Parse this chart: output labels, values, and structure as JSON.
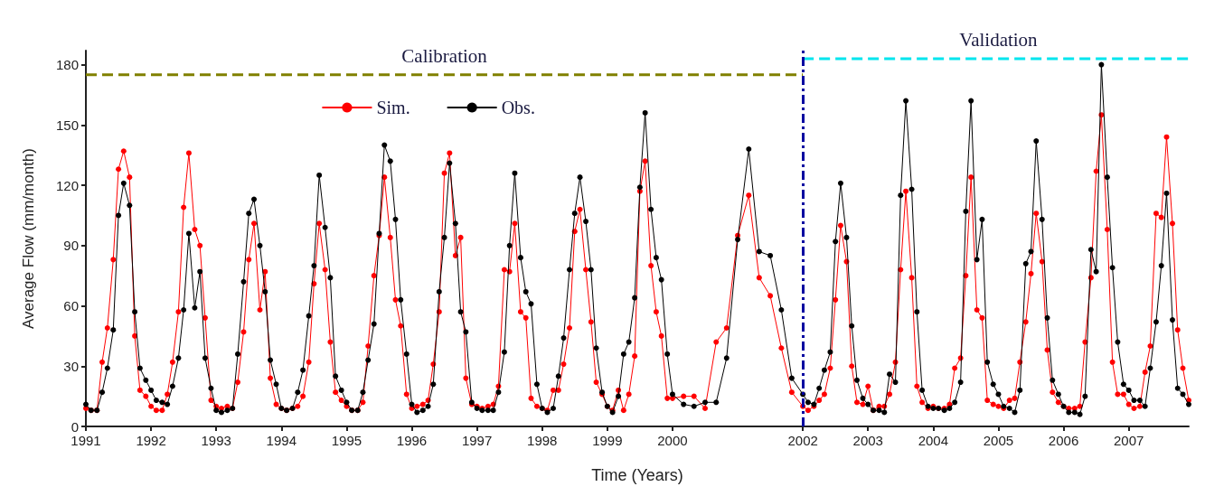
{
  "chart_data": {
    "type": "line",
    "xlabel": "Time (Years)",
    "ylabel": "Average Flow (mm/month)",
    "x": [
      1991,
      1991.08,
      1991.17,
      1991.25,
      1991.33,
      1991.42,
      1991.5,
      1991.58,
      1991.67,
      1991.75,
      1991.83,
      1991.92,
      1992,
      1992.08,
      1992.17,
      1992.25,
      1992.33,
      1992.42,
      1992.5,
      1992.58,
      1992.67,
      1992.75,
      1992.83,
      1992.92,
      1993,
      1993.08,
      1993.17,
      1993.25,
      1993.33,
      1993.42,
      1993.5,
      1993.58,
      1993.67,
      1993.75,
      1993.83,
      1993.92,
      1994,
      1994.08,
      1994.17,
      1994.25,
      1994.33,
      1994.42,
      1994.5,
      1994.58,
      1994.67,
      1994.75,
      1994.83,
      1994.92,
      1995,
      1995.08,
      1995.17,
      1995.25,
      1995.33,
      1995.42,
      1995.5,
      1995.58,
      1995.67,
      1995.75,
      1995.83,
      1995.92,
      1996,
      1996.08,
      1996.17,
      1996.25,
      1996.33,
      1996.42,
      1996.5,
      1996.58,
      1996.67,
      1996.75,
      1996.83,
      1996.92,
      1997,
      1997.08,
      1997.17,
      1997.25,
      1997.33,
      1997.42,
      1997.5,
      1997.58,
      1997.67,
      1997.75,
      1997.83,
      1997.92,
      1998,
      1998.08,
      1998.17,
      1998.25,
      1998.33,
      1998.42,
      1998.5,
      1998.58,
      1998.67,
      1998.75,
      1998.83,
      1998.92,
      1999,
      1999.08,
      1999.17,
      1999.25,
      1999.33,
      1999.42,
      1999.5,
      1999.58,
      1999.67,
      1999.75,
      1999.83,
      1999.92,
      2000,
      2000.17,
      2000.33,
      2000.5,
      2000.67,
      2000.83,
      2001,
      2001.17,
      2001.33,
      2001.5,
      2001.67,
      2001.83,
      2002,
      2002.08,
      2002.17,
      2002.25,
      2002.33,
      2002.42,
      2002.5,
      2002.58,
      2002.67,
      2002.75,
      2002.83,
      2002.92,
      2003,
      2003.08,
      2003.17,
      2003.25,
      2003.33,
      2003.42,
      2003.5,
      2003.58,
      2003.67,
      2003.75,
      2003.83,
      2003.92,
      2004,
      2004.08,
      2004.17,
      2004.25,
      2004.33,
      2004.42,
      2004.5,
      2004.58,
      2004.67,
      2004.75,
      2004.83,
      2004.92,
      2005,
      2005.08,
      2005.17,
      2005.25,
      2005.33,
      2005.42,
      2005.5,
      2005.58,
      2005.67,
      2005.75,
      2005.83,
      2005.92,
      2006,
      2006.08,
      2006.17,
      2006.25,
      2006.33,
      2006.42,
      2006.5,
      2006.58,
      2006.67,
      2006.75,
      2006.83,
      2006.92,
      2007,
      2007.08,
      2007.17,
      2007.25,
      2007.33,
      2007.42,
      2007.5,
      2007.58,
      2007.67,
      2007.75,
      2007.83,
      2007.92
    ],
    "series": [
      {
        "name": "Sim.",
        "color": "#ff0000",
        "values": [
          9,
          8,
          8,
          32,
          49,
          83,
          128,
          137,
          124,
          45,
          18,
          15,
          10,
          8,
          8,
          16,
          32,
          57,
          109,
          136,
          98,
          90,
          54,
          13,
          10,
          9,
          10,
          9,
          22,
          47,
          83,
          101,
          58,
          77,
          24,
          11,
          9,
          8,
          9,
          10,
          15,
          32,
          71,
          101,
          78,
          42,
          17,
          13,
          10,
          8,
          8,
          12,
          40,
          75,
          95,
          124,
          94,
          63,
          50,
          16,
          9,
          10,
          11,
          13,
          31,
          57,
          126,
          136,
          85,
          94,
          24,
          11,
          10,
          9,
          10,
          11,
          20,
          78,
          77,
          101,
          57,
          54,
          14,
          10,
          9,
          8,
          18,
          18,
          31,
          49,
          97,
          108,
          78,
          52,
          22,
          16,
          10,
          8,
          18,
          8,
          16,
          35,
          117,
          132,
          80,
          57,
          45,
          14,
          14,
          15,
          15,
          9,
          42,
          49,
          95,
          115,
          74,
          65,
          39,
          17,
          10,
          8,
          10,
          13,
          16,
          29,
          63,
          100,
          82,
          30,
          12,
          11,
          20,
          8,
          10,
          10,
          16,
          32,
          78,
          117,
          74,
          20,
          12,
          9,
          10,
          9,
          9,
          11,
          29,
          34,
          75,
          124,
          58,
          54,
          13,
          11,
          10,
          9,
          13,
          14,
          32,
          52,
          76,
          106,
          82,
          38,
          17,
          12,
          10,
          9,
          9,
          10,
          42,
          74,
          127,
          155,
          98,
          32,
          16,
          16,
          11,
          9,
          10,
          27,
          40,
          106,
          104,
          144,
          101,
          48,
          29,
          13
        ]
      },
      {
        "name": "Obs.",
        "color": "#000000",
        "values": [
          11,
          8,
          8,
          17,
          29,
          48,
          105,
          121,
          110,
          57,
          29,
          23,
          18,
          13,
          12,
          11,
          20,
          34,
          58,
          96,
          59,
          77,
          34,
          19,
          8,
          7,
          8,
          9,
          36,
          72,
          106,
          113,
          90,
          67,
          33,
          21,
          9,
          8,
          9,
          17,
          28,
          55,
          80,
          125,
          99,
          74,
          25,
          18,
          12,
          8,
          8,
          17,
          33,
          51,
          96,
          140,
          132,
          103,
          63,
          36,
          11,
          7,
          8,
          10,
          21,
          67,
          94,
          131,
          101,
          57,
          47,
          12,
          9,
          8,
          8,
          8,
          17,
          37,
          90,
          126,
          84,
          67,
          61,
          21,
          9,
          7,
          9,
          25,
          44,
          78,
          106,
          124,
          102,
          78,
          39,
          17,
          10,
          7,
          15,
          36,
          42,
          64,
          119,
          156,
          108,
          84,
          73,
          36,
          16,
          11,
          10,
          12,
          12,
          34,
          93,
          138,
          87,
          85,
          58,
          24,
          16,
          12,
          11,
          19,
          28,
          37,
          92,
          121,
          94,
          50,
          23,
          14,
          11,
          8,
          8,
          7,
          26,
          22,
          115,
          162,
          118,
          57,
          18,
          10,
          9,
          9,
          8,
          9,
          12,
          22,
          107,
          162,
          83,
          103,
          32,
          21,
          16,
          10,
          9,
          7,
          18,
          81,
          87,
          142,
          103,
          54,
          23,
          16,
          10,
          7,
          7,
          6,
          15,
          88,
          77,
          180,
          124,
          79,
          42,
          21,
          18,
          13,
          13,
          10,
          29,
          52,
          80,
          116,
          53,
          19,
          16,
          11
        ]
      },
      {
        "color": "#808000",
        "x": [
          1991,
          2002
        ],
        "values": [
          175,
          175
        ],
        "line_style": "dashed",
        "marker": "none"
      },
      {
        "color": "#00e5ee",
        "x": [
          2002,
          2007.92
        ],
        "values": [
          183,
          183
        ],
        "line_style": "dashed",
        "marker": "none"
      }
    ],
    "marker": "circle",
    "line_style": "solid",
    "ref_lines": [
      {
        "axis": "x",
        "value": 2002,
        "color": "#0000a0",
        "line_style": "dashed"
      }
    ],
    "annotations": [
      {
        "text": "Calibration",
        "x": 1996.5,
        "y": 175
      },
      {
        "text": "Validation",
        "x": 2005,
        "y": 183
      }
    ],
    "xlim": [
      1991,
      2007.92
    ],
    "xticks": [
      1991,
      1992,
      1993,
      1994,
      1995,
      1996,
      1997,
      1998,
      1999,
      2000,
      2002,
      2003,
      2004,
      2005,
      2006,
      2007
    ],
    "ylim": [
      0,
      187
    ],
    "yticks": [
      0,
      30,
      60,
      90,
      120,
      150,
      180
    ],
    "grid": false,
    "legend": "top"
  }
}
